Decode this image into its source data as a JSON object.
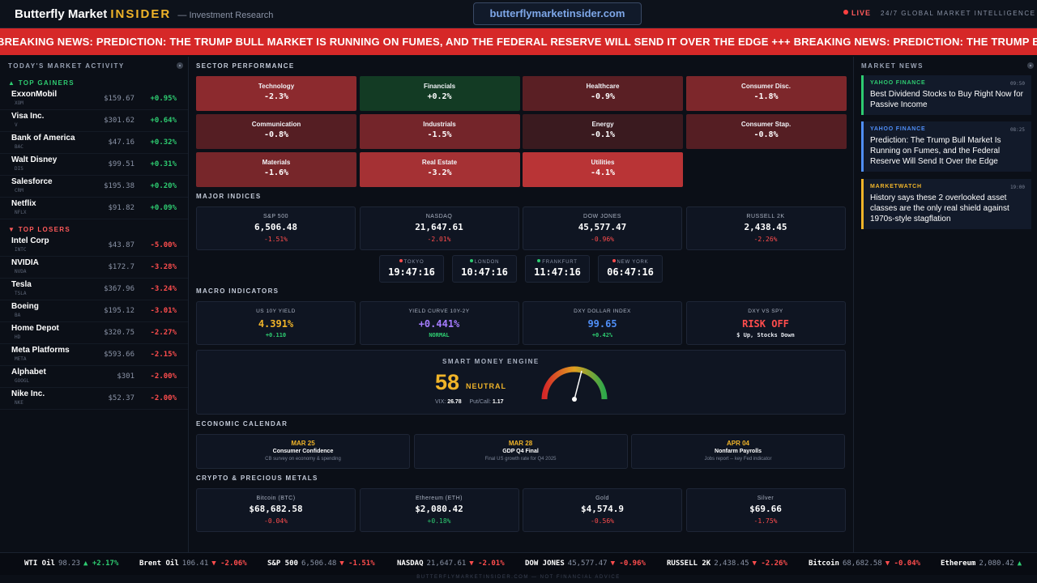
{
  "header": {
    "brand_main": "Butterfly Market",
    "brand_accent": "INSIDER",
    "brand_sub": "— Investment Research",
    "url": "butterflymarketinsider.com",
    "live": "LIVE",
    "tagline": "24/7 GLOBAL MARKET INTELLIGENCE"
  },
  "breaking": "BREAKING NEWS: PREDICTION: THE TRUMP BULL MARKET IS RUNNING ON FUMES, AND THE FEDERAL RESERVE WILL SEND IT OVER THE EDGE +++ BREAKING NEWS: PREDICTION: THE TRUMP BULL MARKET IS RUNNING ON FUMES",
  "market_activity": {
    "title": "TODAY'S MARKET ACTIVITY",
    "gainers_title": "▲ TOP GAINERS",
    "losers_title": "▼ TOP LOSERS",
    "gainers": [
      {
        "name": "ExxonMobil",
        "ticker": "XOM",
        "price": "$159.67",
        "change": "+0.95%"
      },
      {
        "name": "Visa Inc.",
        "ticker": "V",
        "price": "$301.62",
        "change": "+0.64%"
      },
      {
        "name": "Bank of America",
        "ticker": "BAC",
        "price": "$47.16",
        "change": "+0.32%"
      },
      {
        "name": "Walt Disney",
        "ticker": "DIS",
        "price": "$99.51",
        "change": "+0.31%"
      },
      {
        "name": "Salesforce",
        "ticker": "CRM",
        "price": "$195.38",
        "change": "+0.20%"
      },
      {
        "name": "Netflix",
        "ticker": "NFLX",
        "price": "$91.82",
        "change": "+0.09%"
      }
    ],
    "losers": [
      {
        "name": "Intel Corp",
        "ticker": "INTC",
        "price": "$43.87",
        "change": "-5.00%"
      },
      {
        "name": "NVIDIA",
        "ticker": "NVDA",
        "price": "$172.7",
        "change": "-3.28%"
      },
      {
        "name": "Tesla",
        "ticker": "TSLA",
        "price": "$367.96",
        "change": "-3.24%"
      },
      {
        "name": "Boeing",
        "ticker": "BA",
        "price": "$195.12",
        "change": "-3.01%"
      },
      {
        "name": "Home Depot",
        "ticker": "HD",
        "price": "$320.75",
        "change": "-2.27%"
      },
      {
        "name": "Meta Platforms",
        "ticker": "META",
        "price": "$593.66",
        "change": "-2.15%"
      },
      {
        "name": "Alphabet",
        "ticker": "GOOGL",
        "price": "$301",
        "change": "-2.00%"
      },
      {
        "name": "Nike Inc.",
        "ticker": "NKE",
        "price": "$52.37",
        "change": "-2.00%"
      }
    ]
  },
  "sector": {
    "title": "SECTOR PERFORMANCE",
    "items": [
      {
        "name": "Technology",
        "value": "-2.3%",
        "color": "#8c2a2e"
      },
      {
        "name": "Financials",
        "value": "+0.2%",
        "color": "#133b24"
      },
      {
        "name": "Healthcare",
        "value": "-0.9%",
        "color": "#5a1f24"
      },
      {
        "name": "Consumer Disc.",
        "value": "-1.8%",
        "color": "#7d272b"
      },
      {
        "name": "Communication",
        "value": "-0.8%",
        "color": "#551e23"
      },
      {
        "name": "Industrials",
        "value": "-1.5%",
        "color": "#74252a"
      },
      {
        "name": "Energy",
        "value": "-0.1%",
        "color": "#3a1a1f"
      },
      {
        "name": "Consumer Stap.",
        "value": "-0.8%",
        "color": "#551e23"
      },
      {
        "name": "Materials",
        "value": "-1.6%",
        "color": "#77262a"
      },
      {
        "name": "Real Estate",
        "value": "-3.2%",
        "color": "#a53134"
      },
      {
        "name": "Utilities",
        "value": "-4.1%",
        "color": "#b93436"
      }
    ]
  },
  "indices": {
    "title": "MAJOR INDICES",
    "items": [
      {
        "name": "S&P 500",
        "value": "6,506.48",
        "change": "-1.51%"
      },
      {
        "name": "NASDAQ",
        "value": "21,647.61",
        "change": "-2.01%"
      },
      {
        "name": "DOW JONES",
        "value": "45,577.47",
        "change": "-0.96%"
      },
      {
        "name": "RUSSELL 2K",
        "value": "2,438.45",
        "change": "-2.26%"
      }
    ]
  },
  "clocks": [
    {
      "city": "TOKYO",
      "time": "19:47:16",
      "dot": "#ff4d4d"
    },
    {
      "city": "LONDON",
      "time": "10:47:16",
      "dot": "#2ecc71"
    },
    {
      "city": "FRANKFURT",
      "time": "11:47:16",
      "dot": "#2ecc71"
    },
    {
      "city": "NEW YORK",
      "time": "06:47:16",
      "dot": "#ff4d4d"
    }
  ],
  "macro": {
    "title": "MACRO INDICATORS",
    "items": [
      {
        "label": "US 10Y YIELD",
        "value": "4.391%",
        "sub": "+0.110",
        "value_color": "#f0b429",
        "sub_color": "#2ecc71"
      },
      {
        "label": "YIELD CURVE 10Y-2Y",
        "value": "+0.441%",
        "sub": "NORMAL",
        "value_color": "#a57cff",
        "sub_color": "#2ecc71"
      },
      {
        "label": "DXY DOLLAR INDEX",
        "value": "99.65",
        "sub": "+0.42%",
        "value_color": "#4f8ef7",
        "sub_color": "#2ecc71"
      },
      {
        "label": "DXY VS SPY",
        "value": "RISK OFF",
        "sub": "$ Up, Stocks Down",
        "value_color": "#ff4d4d",
        "sub_color": "#e6e9ef"
      }
    ]
  },
  "engine": {
    "title": "SMART MONEY ENGINE",
    "score": "58",
    "state": "NEUTRAL",
    "vix_label": "VIX:",
    "vix": "26.78",
    "pc_label": "Put/Call:",
    "pc": "1.17",
    "gauge_level": 0.58
  },
  "calendar": {
    "title": "ECONOMIC CALENDAR",
    "items": [
      {
        "date": "MAR 25",
        "event": "Consumer Confidence",
        "desc": "CB survey on economy & spending"
      },
      {
        "date": "MAR 28",
        "event": "GDP Q4 Final",
        "desc": "Final US growth rate for Q4 2025"
      },
      {
        "date": "APR 04",
        "event": "Nonfarm Payrolls",
        "desc": "Jobs report -- key Fed indicator"
      }
    ]
  },
  "crypto": {
    "title": "CRYPTO & PRECIOUS METALS",
    "items": [
      {
        "name": "Bitcoin (BTC)",
        "value": "$68,682.58",
        "change": "-0.04%",
        "dir": "down"
      },
      {
        "name": "Ethereum (ETH)",
        "value": "$2,080.42",
        "change": "+0.18%",
        "dir": "up"
      },
      {
        "name": "Gold",
        "value": "$4,574.9",
        "change": "-0.56%",
        "dir": "down"
      },
      {
        "name": "Silver",
        "value": "$69.66",
        "change": "-1.75%",
        "dir": "down"
      }
    ]
  },
  "news": {
    "title": "MARKET NEWS",
    "items": [
      {
        "source": "YAHOO FINANCE",
        "time": "09:50",
        "headline": "Best Dividend Stocks to Buy Right Now for Passive Income",
        "color": "#2ecc71"
      },
      {
        "source": "YAHOO FINANCE",
        "time": "08:25",
        "headline": "Prediction: The Trump Bull Market Is Running on Fumes, and the Federal Reserve Will Send It Over the Edge",
        "color": "#4f8ef7"
      },
      {
        "source": "MARKETWATCH",
        "time": "19:00",
        "headline": "History says these 2 overlooked asset classes are the only real shield against 1970s-style stagflation",
        "color": "#f0b429"
      }
    ]
  },
  "ticker": [
    {
      "name": "WTI Oil",
      "value": "98.23",
      "change": "▲ +2.17%",
      "dir": "up"
    },
    {
      "name": "Brent Oil",
      "value": "106.41",
      "change": "▼ -2.06%",
      "dir": "down"
    },
    {
      "name": "S&P 500",
      "value": "6,506.48",
      "change": "▼ -1.51%",
      "dir": "down"
    },
    {
      "name": "NASDAQ",
      "value": "21,647.61",
      "change": "▼ -2.01%",
      "dir": "down"
    },
    {
      "name": "DOW JONES",
      "value": "45,577.47",
      "change": "▼ -0.96%",
      "dir": "down"
    },
    {
      "name": "RUSSELL 2K",
      "value": "2,438.45",
      "change": "▼ -2.26%",
      "dir": "down"
    },
    {
      "name": "Bitcoin",
      "value": "68,682.58",
      "change": "▼ -0.04%",
      "dir": "down"
    },
    {
      "name": "Ethereum",
      "value": "2,080.42",
      "change": "▲",
      "dir": "up"
    }
  ],
  "footer": "BUTTERFLYMARKETINSIDER.COM — NOT FINANCIAL ADVICE"
}
